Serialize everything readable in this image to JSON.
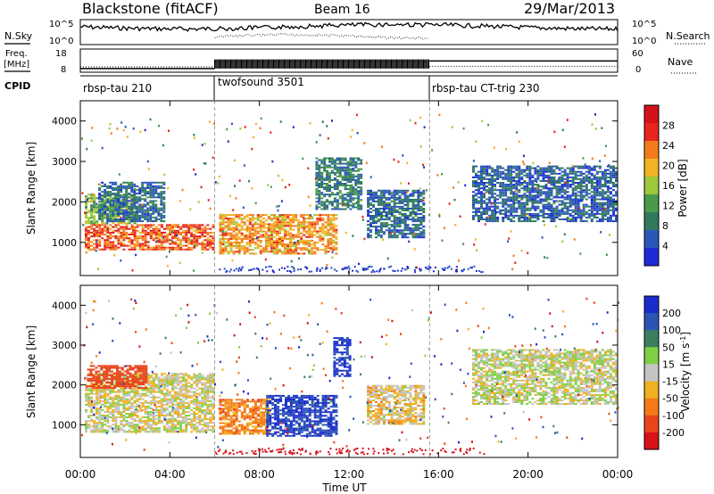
{
  "header": {
    "station": "Blackstone (fitACF)",
    "beam": "Beam 16",
    "date": "29/Mar/2013"
  },
  "side_labels": {
    "nsky": "N.Sky",
    "freq_top": "Freq.",
    "freq_unit": "[MHz]",
    "cpid": "CPID",
    "nsearch": "N.Search",
    "nave": "Nave"
  },
  "noise_panel": {
    "left_ticks": [
      "10^5",
      "10^0"
    ],
    "right_ticks": [
      "10^5",
      "10^0"
    ]
  },
  "freq_panel": {
    "left_ticks": [
      "18",
      "8"
    ],
    "right_ticks": [
      "60",
      "0"
    ],
    "freq_mhz": [
      {
        "from": 0,
        "to": 6,
        "value": 10.3
      },
      {
        "from": 6,
        "to": 15.6,
        "value": 14.5
      },
      {
        "from": 15.6,
        "to": 24,
        "value": 15.0
      }
    ],
    "nave": [
      {
        "from": 0,
        "to": 6,
        "value": 20
      },
      {
        "from": 6,
        "to": 15.6,
        "value": 40
      },
      {
        "from": 15.6,
        "to": 24,
        "value": 22
      }
    ]
  },
  "cpid_segments": [
    {
      "label": "rbsp-tau 210",
      "start": 0,
      "end": 6.0
    },
    {
      "label": "twofsound 3501",
      "start": 6.0,
      "end": 15.6
    },
    {
      "label": "rbsp-tau CT-trig 230",
      "start": 15.6,
      "end": 24
    }
  ],
  "chart_data": [
    {
      "type": "heatmap",
      "xlabel": "",
      "ylabel": "Slant Range [km]",
      "xlim": [
        0,
        24
      ],
      "ylim": [
        180,
        4500
      ],
      "yticks": [
        1000,
        2000,
        3000,
        4000
      ],
      "colorbar": {
        "label": "Power [dB]",
        "ticks": [
          4,
          8,
          12,
          16,
          20,
          24,
          28
        ],
        "range": [
          0,
          32
        ]
      },
      "regions": [
        {
          "t0": 0.2,
          "t1": 6.0,
          "r0": 800,
          "r1": 1450,
          "value": 28
        },
        {
          "t0": 0.2,
          "t1": 2.5,
          "r0": 1450,
          "r1": 2200,
          "value": 16
        },
        {
          "t0": 0.8,
          "t1": 3.8,
          "r0": 1500,
          "r1": 2500,
          "value": 8
        },
        {
          "t0": 6.2,
          "t1": 11.5,
          "r0": 700,
          "r1": 1700,
          "value": 24
        },
        {
          "t0": 10.5,
          "t1": 12.6,
          "r0": 1800,
          "r1": 3100,
          "value": 10
        },
        {
          "t0": 12.8,
          "t1": 15.4,
          "r0": 1100,
          "r1": 2300,
          "value": 8
        },
        {
          "t0": 17.5,
          "t1": 24,
          "r0": 1500,
          "r1": 2900,
          "value": 7
        }
      ]
    },
    {
      "type": "heatmap",
      "xlabel": "Time UT",
      "ylabel": "Slant Range [km]",
      "xlim": [
        0,
        24
      ],
      "ylim": [
        180,
        4500
      ],
      "yticks": [
        1000,
        2000,
        3000,
        4000
      ],
      "xticks": [
        "00:00",
        "04:00",
        "08:00",
        "12:00",
        "16:00",
        "20:00",
        "00:00"
      ],
      "colorbar": {
        "label": "Velocity [m s^-1]",
        "ticks": [
          200,
          100,
          50,
          15,
          -15,
          -50,
          -100,
          -200
        ],
        "range": [
          -250,
          250
        ]
      },
      "regions": [
        {
          "t0": 0.2,
          "t1": 6.0,
          "r0": 800,
          "r1": 2300,
          "value": -5
        },
        {
          "t0": 0.3,
          "t1": 3.0,
          "r0": 1900,
          "r1": 2500,
          "value": -160
        },
        {
          "t0": 6.2,
          "t1": 8.5,
          "r0": 750,
          "r1": 1650,
          "value": -70
        },
        {
          "t0": 8.3,
          "t1": 11.5,
          "r0": 700,
          "r1": 1750,
          "value": 200
        },
        {
          "t0": 11.3,
          "t1": 12.1,
          "r0": 2200,
          "r1": 3200,
          "value": 210
        },
        {
          "t0": 12.8,
          "t1": 15.4,
          "r0": 1000,
          "r1": 2000,
          "value": -20
        },
        {
          "t0": 17.5,
          "t1": 24,
          "r0": 1500,
          "r1": 2900,
          "value": 5
        }
      ]
    }
  ]
}
